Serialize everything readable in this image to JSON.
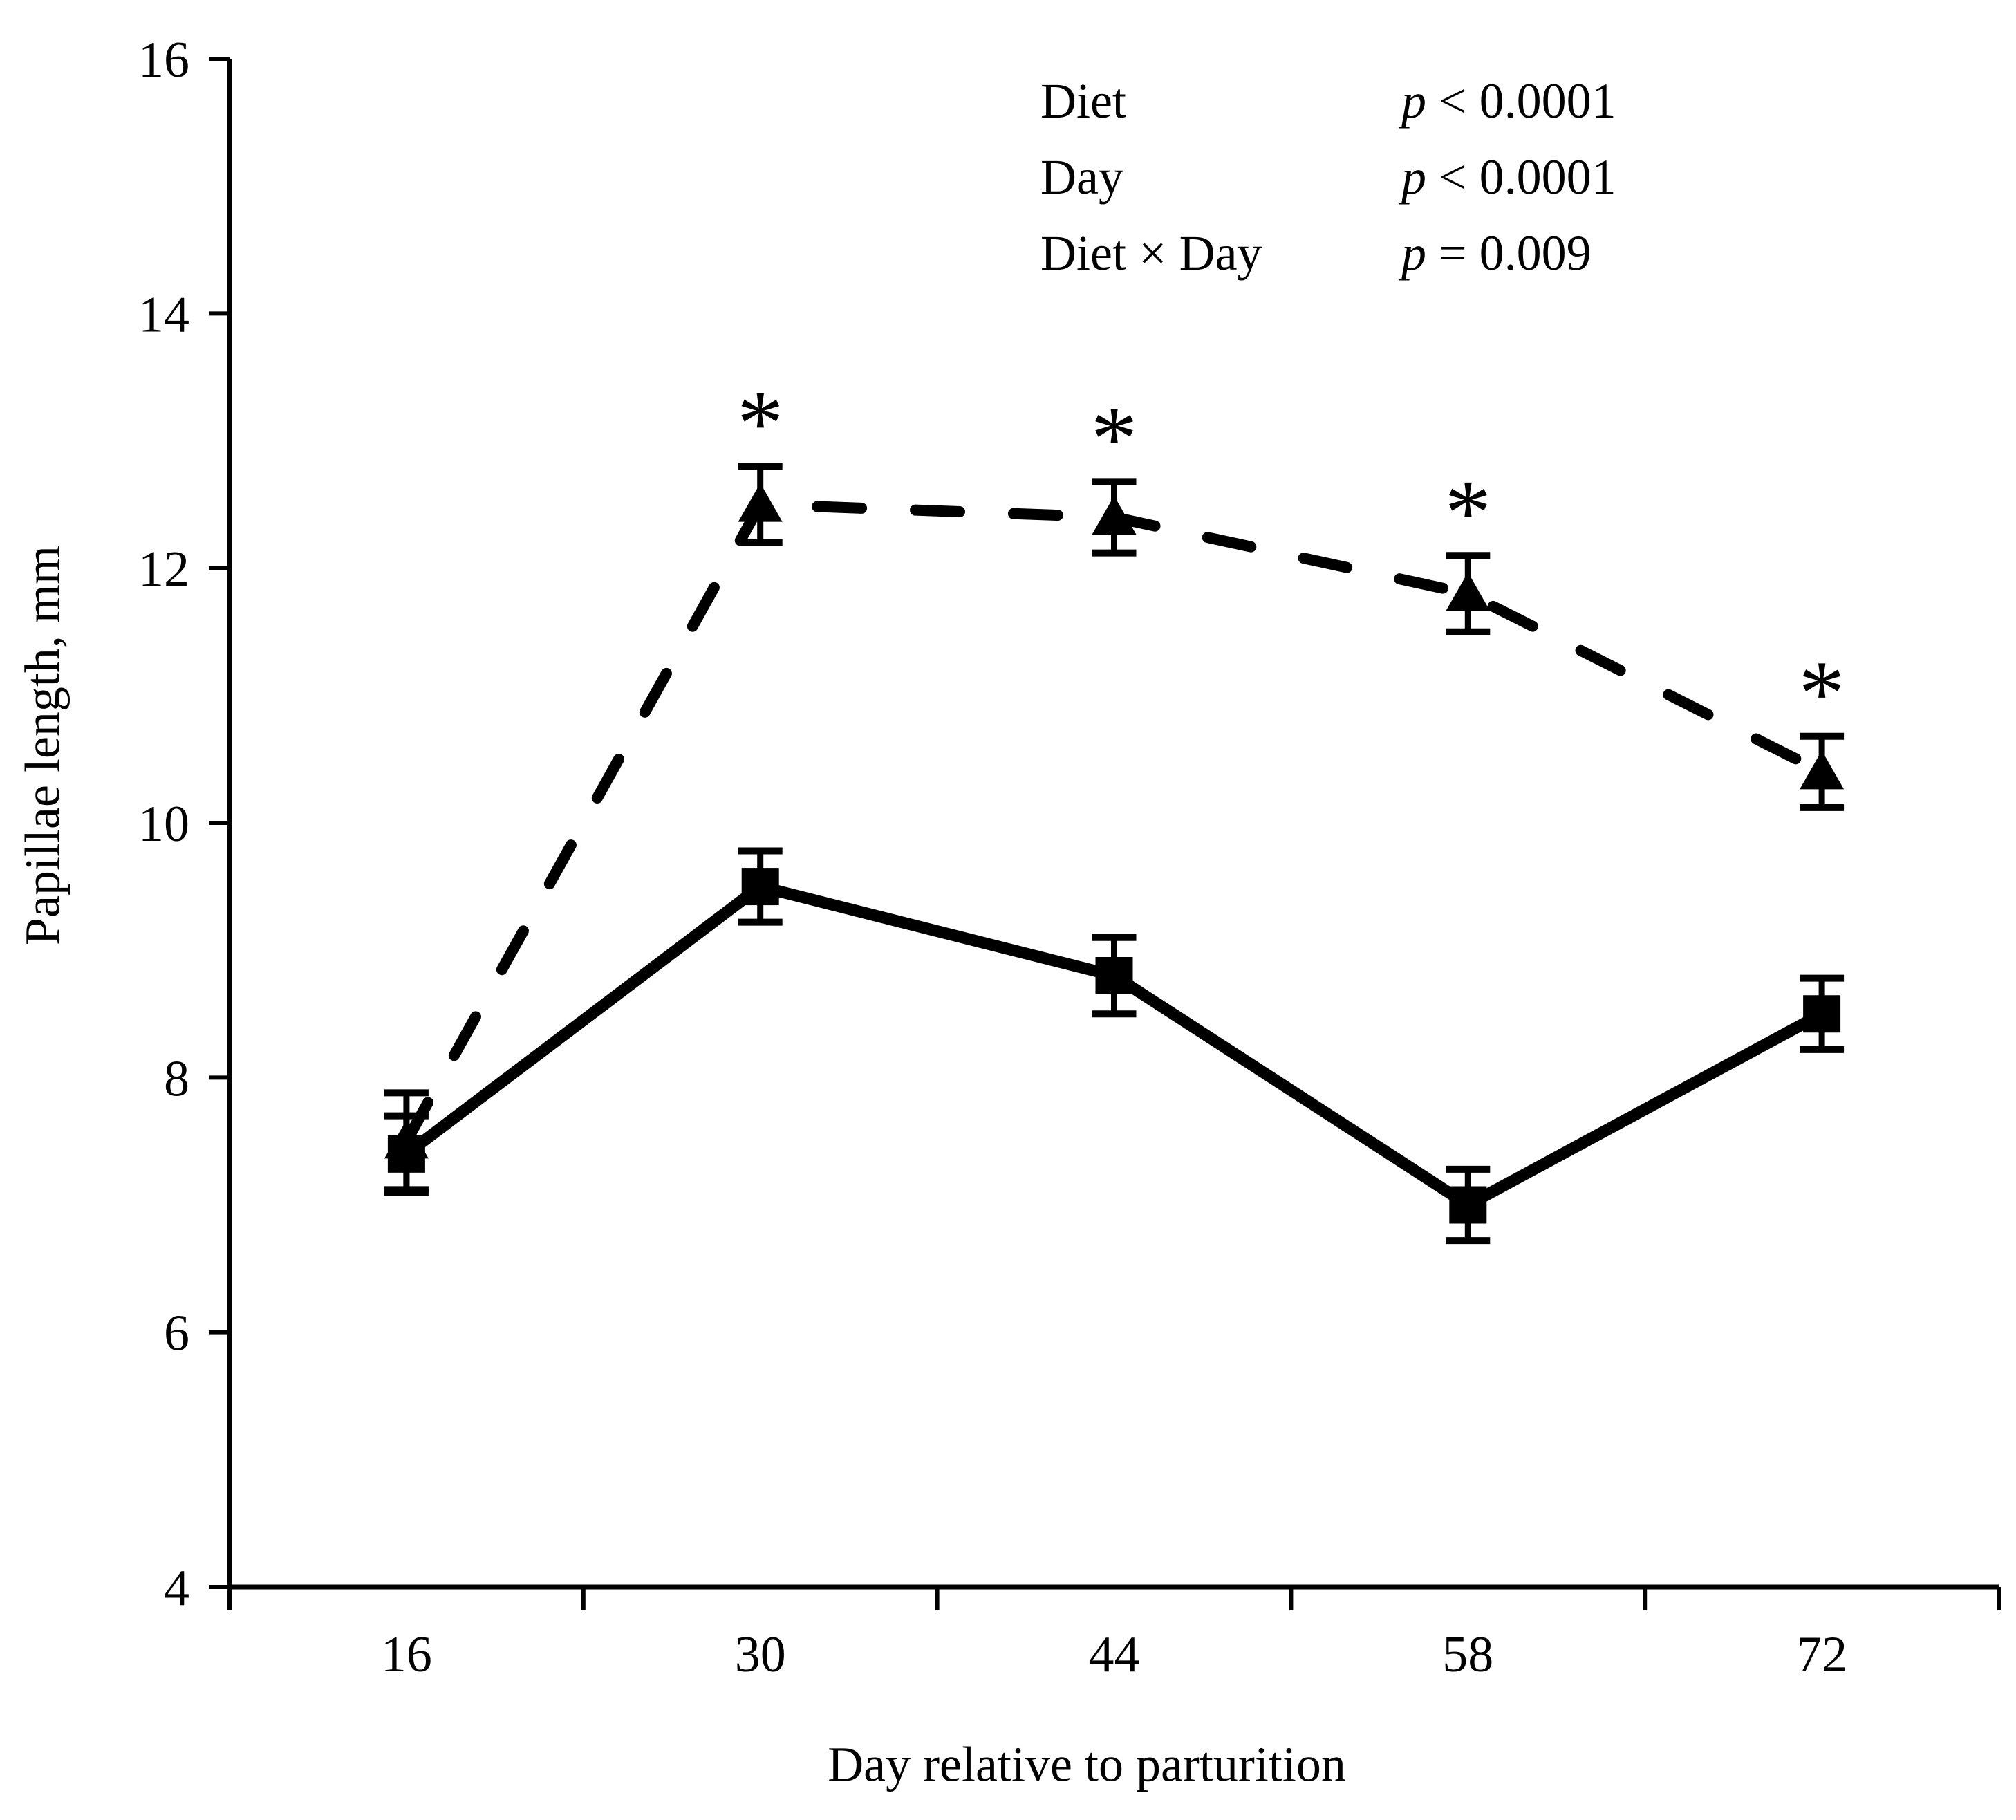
{
  "figure": {
    "background": "#ffffff",
    "ink": "#000000"
  },
  "stats_box": {
    "p_symbol": "p",
    "rows": [
      {
        "label": "Diet",
        "value": "< 0.0001"
      },
      {
        "label": "Day",
        "value": "< 0.0001"
      },
      {
        "label": "Diet × Day",
        "value": "= 0.009"
      }
    ]
  },
  "chart_data": {
    "type": "line",
    "title": "",
    "xlabel": "Day relative to parturition",
    "ylabel": "Papillae length, mm",
    "x_categories": [
      "16",
      "30",
      "44",
      "58",
      "72"
    ],
    "ylim": [
      4,
      16
    ],
    "yticks": [
      4,
      6,
      8,
      10,
      12,
      14,
      16
    ],
    "grid": false,
    "legend": "none",
    "annotations": {
      "asterisk_symbol": "*"
    },
    "series": [
      {
        "name": "dashed-triangle",
        "marker": "triangle-up",
        "line_style": "dashed",
        "color": "#000000",
        "values": [
          7.5,
          12.5,
          12.4,
          11.8,
          10.4
        ],
        "error_bars": [
          0.38,
          0.3,
          0.28,
          0.3,
          0.28
        ],
        "significance_asterisk": [
          false,
          true,
          true,
          true,
          true
        ]
      },
      {
        "name": "solid-square",
        "marker": "square",
        "line_style": "solid",
        "color": "#000000",
        "values": [
          7.4,
          9.5,
          8.8,
          7.0,
          8.5
        ],
        "error_bars": [
          0.3,
          0.28,
          0.3,
          0.28,
          0.28
        ],
        "significance_asterisk": [
          false,
          false,
          false,
          false,
          false
        ]
      }
    ]
  }
}
